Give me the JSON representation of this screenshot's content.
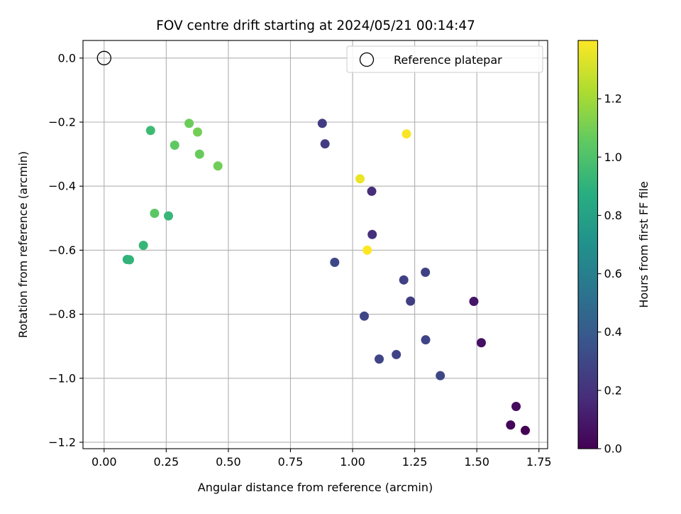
{
  "chart_data": {
    "type": "scatter",
    "title": "FOV centre drift starting at 2024/05/21 00:14:47",
    "xlabel": "Angular distance from reference (arcmin)",
    "ylabel": "Rotation from reference (arcmin)",
    "xlim": [
      -0.085,
      1.785
    ],
    "ylim": [
      -1.22,
      0.055
    ],
    "grid": true,
    "xticks": [
      0.0,
      0.25,
      0.5,
      0.75,
      1.0,
      1.25,
      1.5,
      1.75
    ],
    "xtick_labels": [
      "0.00",
      "0.25",
      "0.50",
      "0.75",
      "1.00",
      "1.25",
      "1.50",
      "1.75"
    ],
    "yticks": [
      0.0,
      -0.2,
      -0.4,
      -0.6,
      -0.8,
      -1.0,
      -1.2
    ],
    "ytick_labels": [
      "0.0",
      "−0.2",
      "−0.4",
      "−0.6",
      "−0.8",
      "−1.0",
      "−1.2"
    ],
    "legend": {
      "label": "Reference platepar",
      "placement": "top-right"
    },
    "reference_point": {
      "x": 0.0,
      "y": 0.0
    },
    "colorbar": {
      "label": "Hours from first FF file",
      "min": 0.0,
      "max": 1.4,
      "ticks": [
        0.0,
        0.2,
        0.4,
        0.6,
        0.8,
        1.0,
        1.2
      ],
      "tick_labels": [
        "0.0",
        "0.2",
        "0.4",
        "0.6",
        "0.8",
        "1.0",
        "1.2"
      ],
      "colormap": "viridis"
    },
    "points": [
      {
        "x": 1.695,
        "y": -1.163,
        "c": 0.0
      },
      {
        "x": 1.636,
        "y": -1.146,
        "c": 0.02
      },
      {
        "x": 1.658,
        "y": -1.088,
        "c": 0.04
      },
      {
        "x": 1.518,
        "y": -0.889,
        "c": 0.06
      },
      {
        "x": 1.488,
        "y": -0.76,
        "c": 0.08
      },
      {
        "x": 1.353,
        "y": -0.992,
        "c": 0.3
      },
      {
        "x": 1.294,
        "y": -0.88,
        "c": 0.28
      },
      {
        "x": 1.293,
        "y": -0.669,
        "c": 0.27
      },
      {
        "x": 1.233,
        "y": -0.759,
        "c": 0.26
      },
      {
        "x": 1.206,
        "y": -0.693,
        "c": 0.27
      },
      {
        "x": 1.176,
        "y": -0.926,
        "c": 0.28
      },
      {
        "x": 1.107,
        "y": -0.94,
        "c": 0.29
      },
      {
        "x": 1.047,
        "y": -0.806,
        "c": 0.29
      },
      {
        "x": 0.928,
        "y": -0.638,
        "c": 0.3
      },
      {
        "x": 0.889,
        "y": -0.268,
        "c": 0.24
      },
      {
        "x": 0.878,
        "y": -0.204,
        "c": 0.25
      },
      {
        "x": 1.077,
        "y": -0.416,
        "c": 0.18
      },
      {
        "x": 1.079,
        "y": -0.551,
        "c": 0.19
      },
      {
        "x": 1.03,
        "y": -0.377,
        "c": 1.36
      },
      {
        "x": 1.059,
        "y": -0.6,
        "c": 1.4
      },
      {
        "x": 1.217,
        "y": -0.237,
        "c": 1.39
      },
      {
        "x": 0.187,
        "y": -0.226,
        "c": 0.95
      },
      {
        "x": 0.342,
        "y": -0.204,
        "c": 1.08
      },
      {
        "x": 0.376,
        "y": -0.231,
        "c": 1.1
      },
      {
        "x": 0.284,
        "y": -0.272,
        "c": 1.05
      },
      {
        "x": 0.384,
        "y": -0.3,
        "c": 1.07
      },
      {
        "x": 0.458,
        "y": -0.337,
        "c": 1.09
      },
      {
        "x": 0.203,
        "y": -0.485,
        "c": 1.04
      },
      {
        "x": 0.259,
        "y": -0.493,
        "c": 0.93
      },
      {
        "x": 0.158,
        "y": -0.585,
        "c": 0.92
      },
      {
        "x": 0.093,
        "y": -0.629,
        "c": 0.9
      },
      {
        "x": 0.102,
        "y": -0.63,
        "c": 0.91
      }
    ]
  }
}
